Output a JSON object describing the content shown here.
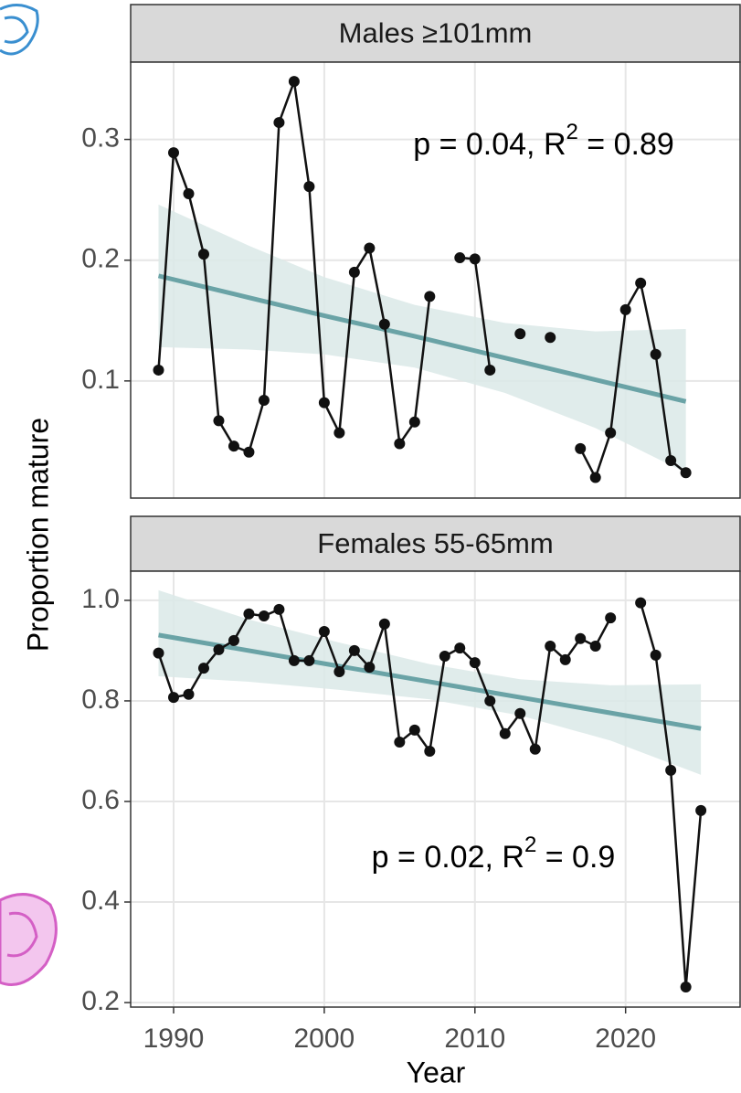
{
  "axis_titles": {
    "x": "Year",
    "y": "Proportion mature"
  },
  "chart_data": [
    {
      "type": "line",
      "title": "Males ≥101mm",
      "color": "#111111",
      "x": [
        1989,
        1990,
        1991,
        1992,
        1993,
        1994,
        1995,
        1996,
        1997,
        1998,
        1999,
        2000,
        2001,
        2002,
        2003,
        2004,
        2005,
        2006,
        2007,
        2008,
        2009,
        2010,
        2011,
        2012,
        2013,
        2014,
        2015,
        2016,
        2017,
        2018,
        2019,
        2020,
        2021,
        2022,
        2023,
        2024
      ],
      "values": [
        0.109,
        0.289,
        0.255,
        0.205,
        0.067,
        0.046,
        0.041,
        0.084,
        0.314,
        0.348,
        0.261,
        0.082,
        0.057,
        0.19,
        0.21,
        0.147,
        0.048,
        0.066,
        0.17,
        null,
        0.202,
        0.201,
        0.109,
        null,
        0.139,
        null,
        0.136,
        null,
        0.044,
        0.02,
        0.057,
        0.159,
        0.181,
        0.122,
        0.034,
        0.024
      ],
      "trend": {
        "color": "#6aa3a6",
        "band_color": "#dbe9e8",
        "x": [
          1989,
          1995,
          2000,
          2006,
          2012,
          2018,
          2024
        ],
        "values": [
          0.187,
          0.169,
          0.154,
          0.137,
          0.119,
          0.101,
          0.083
        ],
        "lower": [
          0.128,
          0.126,
          0.122,
          0.111,
          0.09,
          0.061,
          0.024
        ],
        "upper": [
          0.246,
          0.212,
          0.186,
          0.163,
          0.148,
          0.141,
          0.143
        ]
      },
      "annotation": {
        "text": "p = 0.04,  R",
        "sup": "2",
        "after": " = 0.89"
      },
      "xlim": [
        1987.15,
        2027.6
      ],
      "xticks": [
        1990,
        2000,
        2010,
        2020
      ],
      "ylim": [
        0.003,
        0.364
      ],
      "yticks": [
        0.1,
        0.2,
        0.3
      ],
      "grid": true
    },
    {
      "type": "line",
      "title": "Females 55-65mm",
      "color": "#111111",
      "x": [
        1989,
        1990,
        1991,
        1992,
        1993,
        1994,
        1995,
        1996,
        1997,
        1998,
        1999,
        2000,
        2001,
        2002,
        2003,
        2004,
        2005,
        2006,
        2007,
        2008,
        2009,
        2010,
        2011,
        2012,
        2013,
        2014,
        2015,
        2016,
        2017,
        2018,
        2019,
        2020,
        2021,
        2022,
        2023,
        2024,
        2025
      ],
      "values": [
        0.895,
        0.807,
        0.813,
        0.865,
        0.902,
        0.92,
        0.973,
        0.969,
        0.982,
        0.88,
        0.88,
        0.938,
        0.858,
        0.9,
        0.867,
        0.953,
        0.718,
        0.742,
        0.7,
        0.889,
        0.905,
        0.876,
        0.8,
        0.735,
        0.775,
        0.704,
        0.909,
        0.882,
        0.924,
        0.909,
        0.965,
        null,
        0.995,
        0.891,
        0.662,
        0.231,
        0.582
      ],
      "trend": {
        "color": "#6aa3a6",
        "band_color": "#dbe9e8",
        "x": [
          1989,
          1995,
          2001,
          2007,
          2013,
          2019,
          2025
        ],
        "values": [
          0.931,
          0.9,
          0.869,
          0.838,
          0.807,
          0.776,
          0.745
        ],
        "lower": [
          0.849,
          0.838,
          0.822,
          0.803,
          0.771,
          0.721,
          0.653
        ],
        "upper": [
          1.02,
          0.962,
          0.916,
          0.873,
          0.843,
          0.831,
          0.833
        ]
      },
      "annotation": {
        "text": "p = 0.02,  R",
        "sup": "2",
        "after": " = 0.9"
      },
      "xlim": [
        1987.15,
        2027.6
      ],
      "xticks": [
        1990,
        2000,
        2010,
        2020
      ],
      "ylim": [
        0.191,
        1.058
      ],
      "yticks": [
        {
          "value": 0.2,
          "label": "0.2"
        },
        {
          "value": 0.4,
          "label": "0.4"
        },
        {
          "value": 0.6,
          "label": "0.6"
        },
        {
          "value": 0.8,
          "label": "0.8"
        },
        {
          "value": 1.0,
          "label": "1.0"
        }
      ],
      "grid": true
    }
  ]
}
